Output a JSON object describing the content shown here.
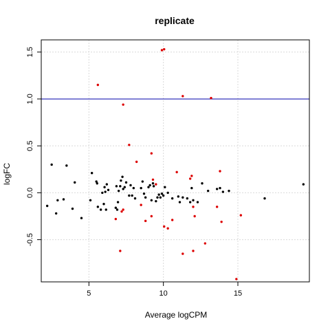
{
  "chart_data": {
    "type": "scatter",
    "title": "replicate",
    "xlabel": "Average logCPM",
    "ylabel": "logFC",
    "xlim": [
      1.8,
      19.8
    ],
    "ylim": [
      -0.95,
      1.63
    ],
    "x_ticks": [
      5,
      10,
      15
    ],
    "y_ticks": [
      -0.5,
      0.0,
      0.5,
      1.0,
      1.5
    ],
    "x_tick_labels": [
      "5",
      "10",
      "15"
    ],
    "y_tick_labels": [
      "-0.5",
      "0.0",
      "0.5",
      "1.0",
      "1.5"
    ],
    "grid": true,
    "hline": {
      "y": 1.0,
      "color": "#0000aa"
    },
    "colors": {
      "normal": "#000000",
      "highlight": "#dd0000",
      "grid": "#d9d9d9"
    },
    "series": [
      {
        "points": [
          [
            2.2,
            -0.14
          ],
          [
            2.5,
            0.3
          ],
          [
            2.8,
            -0.22
          ],
          [
            2.9,
            -0.08
          ],
          [
            3.3,
            -0.07
          ],
          [
            3.5,
            0.29
          ],
          [
            3.9,
            -0.17
          ],
          [
            4.05,
            0.11
          ],
          [
            4.5,
            -0.27
          ],
          [
            5.1,
            -0.08
          ],
          [
            5.2,
            0.21
          ],
          [
            5.5,
            0.12
          ],
          [
            5.55,
            0.1
          ],
          [
            5.6,
            -0.15
          ],
          [
            5.8,
            -0.18
          ],
          [
            5.9,
            0.0
          ],
          [
            6.0,
            -0.12
          ],
          [
            6.05,
            0.06
          ],
          [
            6.1,
            0.01
          ],
          [
            6.15,
            -0.18
          ],
          [
            6.2,
            0.09
          ],
          [
            6.3,
            0.03
          ],
          [
            6.8,
            -0.16
          ],
          [
            6.85,
            0.07
          ],
          [
            6.9,
            -0.18
          ],
          [
            6.95,
            -0.1
          ],
          [
            7.0,
            0.02
          ],
          [
            7.1,
            0.07
          ],
          [
            7.15,
            0.13
          ],
          [
            7.25,
            0.17
          ],
          [
            7.3,
            0.04
          ],
          [
            7.4,
            0.06
          ],
          [
            7.5,
            0.11
          ],
          [
            7.7,
            -0.03
          ],
          [
            7.8,
            0.08
          ],
          [
            7.9,
            -0.03
          ],
          [
            8.0,
            0.05
          ],
          [
            8.1,
            -0.06
          ],
          [
            8.5,
            0.05
          ],
          [
            8.6,
            0.12
          ],
          [
            8.7,
            -0.01
          ],
          [
            8.8,
            -0.05
          ],
          [
            9.0,
            0.06
          ],
          [
            9.1,
            0.08
          ],
          [
            9.2,
            -0.08
          ],
          [
            9.3,
            0.1
          ],
          [
            9.35,
            0.07
          ],
          [
            9.5,
            -0.09
          ],
          [
            9.6,
            -0.05
          ],
          [
            9.7,
            -0.02
          ],
          [
            9.8,
            -0.05
          ],
          [
            9.9,
            -0.01
          ],
          [
            10.0,
            -0.03
          ],
          [
            10.1,
            0.06
          ],
          [
            10.3,
            0.0
          ],
          [
            10.6,
            -0.06
          ],
          [
            11.0,
            -0.04
          ],
          [
            11.1,
            -0.1
          ],
          [
            11.3,
            -0.05
          ],
          [
            11.6,
            -0.06
          ],
          [
            11.8,
            -0.1
          ],
          [
            11.9,
            0.05
          ],
          [
            12.0,
            -0.08
          ],
          [
            12.3,
            -0.1
          ],
          [
            12.6,
            0.1
          ],
          [
            13.0,
            0.02
          ],
          [
            13.6,
            0.04
          ],
          [
            13.8,
            0.05
          ],
          [
            14.0,
            0.01
          ],
          [
            14.4,
            0.02
          ],
          [
            16.8,
            -0.06
          ],
          [
            19.4,
            0.09
          ]
        ],
        "color": "#000000"
      },
      {
        "points": [
          [
            5.6,
            1.15
          ],
          [
            7.3,
            0.94
          ],
          [
            7.7,
            0.51
          ],
          [
            8.2,
            0.33
          ],
          [
            9.2,
            0.42
          ],
          [
            9.9,
            1.52
          ],
          [
            10.05,
            1.53
          ],
          [
            11.3,
            1.03
          ],
          [
            13.2,
            1.01
          ],
          [
            6.8,
            -0.28
          ],
          [
            7.1,
            -0.62
          ],
          [
            7.2,
            -0.2
          ],
          [
            7.3,
            -0.18
          ],
          [
            8.5,
            -0.13
          ],
          [
            8.8,
            -0.3
          ],
          [
            9.2,
            -0.25
          ],
          [
            9.3,
            0.14
          ],
          [
            9.5,
            0.09
          ],
          [
            10.05,
            -0.36
          ],
          [
            10.3,
            -0.38
          ],
          [
            10.6,
            -0.29
          ],
          [
            10.9,
            0.22
          ],
          [
            11.3,
            -0.65
          ],
          [
            11.8,
            0.15
          ],
          [
            11.9,
            0.18
          ],
          [
            12.0,
            -0.15
          ],
          [
            12.0,
            -0.62
          ],
          [
            12.1,
            -0.25
          ],
          [
            12.8,
            -0.54
          ],
          [
            13.6,
            -0.15
          ],
          [
            13.8,
            0.23
          ],
          [
            13.9,
            -0.31
          ],
          [
            14.9,
            -0.92
          ],
          [
            15.2,
            -0.24
          ]
        ],
        "color": "#dd0000"
      }
    ]
  }
}
